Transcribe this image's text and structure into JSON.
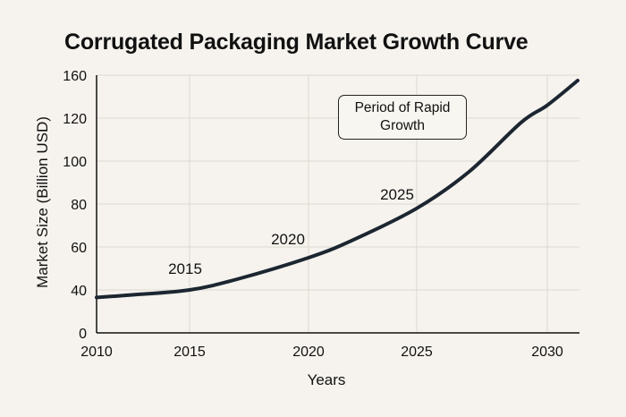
{
  "chart_data": {
    "type": "line",
    "title": "Corrugated Packaging Market Growth Curve",
    "xlabel": "Years",
    "ylabel": "Market Size (Billion USD)",
    "x_ticks": [
      "2010",
      "2015",
      "2020",
      "2025",
      "2030"
    ],
    "y_ticks": [
      "0",
      "40",
      "60",
      "80",
      "100",
      "120",
      "160"
    ],
    "ylim": [
      0,
      160
    ],
    "grid": true,
    "series": [
      {
        "name": "Market Size",
        "color": "#1c2631",
        "x": [
          2010,
          2012,
          2015,
          2017,
          2020,
          2022,
          2025,
          2027,
          2029,
          2030,
          2031.4
        ],
        "y": [
          33,
          35.5,
          40,
          45,
          55,
          63,
          78,
          95,
          118,
          132,
          155
        ]
      }
    ],
    "point_labels": [
      {
        "text": "2015",
        "x": 2015,
        "y": 40
      },
      {
        "text": "2020",
        "x": 2020,
        "y": 55
      },
      {
        "text": "2025",
        "x": 2025,
        "y": 78
      }
    ],
    "annotation": {
      "line1": "Period of Rapid",
      "line2": "Growth"
    }
  }
}
